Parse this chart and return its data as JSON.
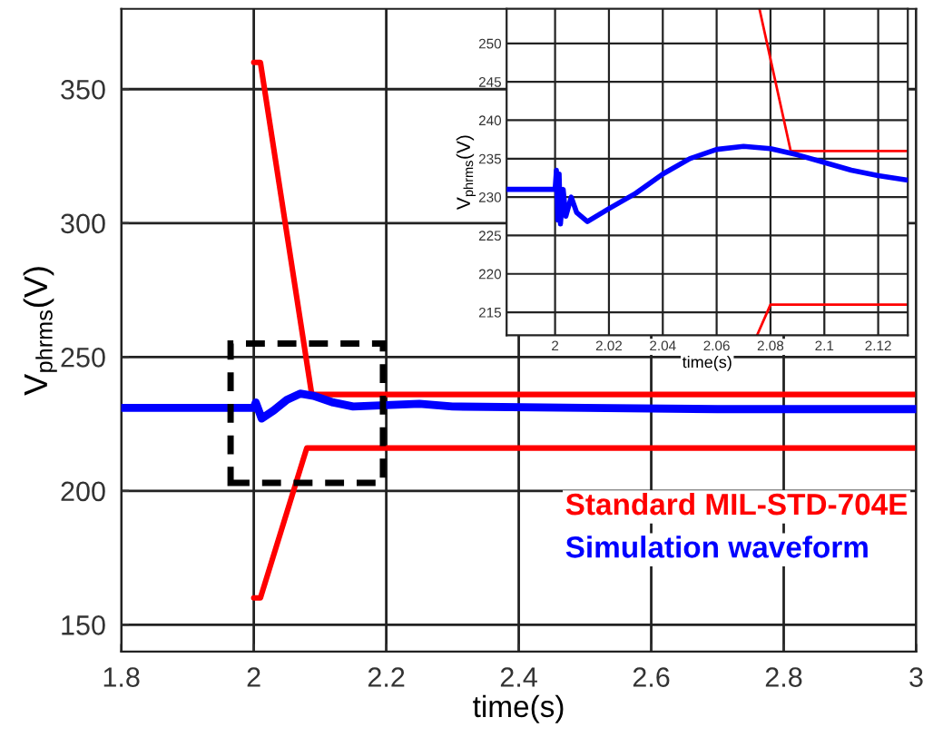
{
  "chart_data": [
    {
      "type": "line",
      "xlabel": "time(s)",
      "ylabel": "V$_{phrms}$(V)",
      "xlim": [
        1.8,
        3
      ],
      "ylim": [
        140,
        380
      ],
      "xticks": [
        1.8,
        2,
        2.2,
        2.4,
        2.6,
        2.8,
        3
      ],
      "yticks": [
        150,
        200,
        250,
        300,
        350
      ],
      "grid": true,
      "series": [
        {
          "name": "Standard MIL-STD-704E",
          "color": "#ff0000",
          "x": [
            2,
            2.01,
            2.0875,
            3,
            null,
            2,
            2.01,
            2.08,
            3
          ],
          "values": [
            360,
            360,
            236,
            236,
            null,
            160,
            160,
            216,
            216
          ]
        },
        {
          "name": "Simulation waveform",
          "color": "#0000ff",
          "x": [
            1.8,
            2.0,
            2.003,
            2.012,
            2.03,
            2.05,
            2.07,
            2.09,
            2.12,
            2.15,
            2.2,
            2.25,
            2.3,
            2.5,
            2.7,
            3
          ],
          "values": [
            231,
            231,
            233,
            227,
            230,
            234,
            236.3,
            235.5,
            233,
            231.5,
            232,
            232.5,
            231.5,
            231,
            230.5,
            230.5
          ]
        }
      ]
    },
    {
      "type": "line",
      "xlabel": "time(s)",
      "ylabel": "V$_{phrms}$(V)",
      "xlim": [
        1.982,
        2.131
      ],
      "ylim": [
        212,
        254.5
      ],
      "xticks": [
        2,
        2.02,
        2.04,
        2.06,
        2.08,
        2.1,
        2.12
      ],
      "yticks": [
        215,
        220,
        225,
        230,
        235,
        240,
        245,
        250
      ],
      "grid": true,
      "series": [
        {
          "color": "#ff0000",
          "x": [
            2.0759,
            2.0875,
            2.131,
            null,
            2.075,
            2.08,
            2.131
          ],
          "values": [
            254.5,
            236,
            236,
            null,
            212,
            216,
            216
          ]
        },
        {
          "color": "#0000ff",
          "x": [
            1.982,
            2.0,
            2.0005,
            2.001,
            2.0015,
            2.002,
            2.003,
            2.004,
            2.006,
            2.008,
            2.012,
            2.02,
            2.03,
            2.04,
            2.05,
            2.06,
            2.07,
            2.08,
            2.09,
            2.1,
            2.11,
            2.12,
            2.131
          ],
          "values": [
            231,
            231,
            233.5,
            227,
            233,
            226.5,
            231,
            227.5,
            230,
            228,
            226.8,
            228.5,
            230.5,
            233,
            235,
            236.2,
            236.6,
            236.3,
            235.5,
            234.5,
            233.5,
            232.8,
            232.2
          ]
        }
      ]
    }
  ]
}
